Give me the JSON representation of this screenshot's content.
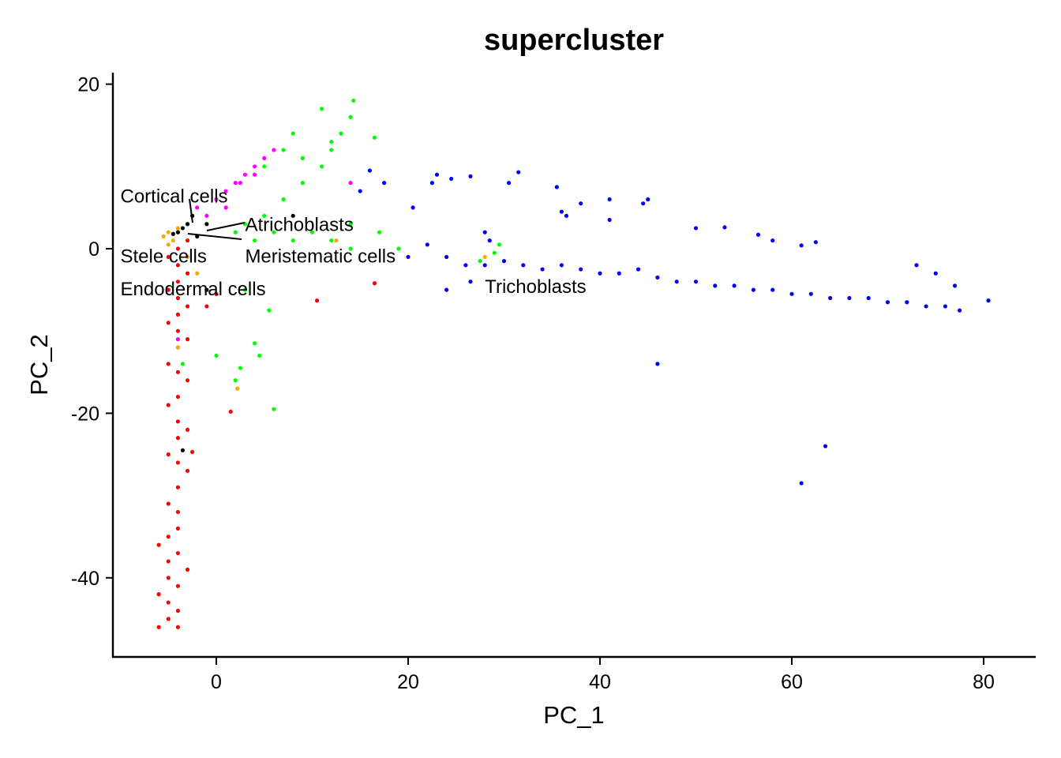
{
  "chart_data": {
    "type": "scatter",
    "title": "supercluster",
    "xlabel": "PC_1",
    "ylabel": "PC_2",
    "xlim": [
      -11,
      85
    ],
    "ylim": [
      -50,
      21
    ],
    "x_ticks": [
      0,
      20,
      40,
      60,
      80
    ],
    "y_ticks": [
      20,
      0,
      -20,
      -40
    ],
    "grid": false,
    "legend": "none (labels placed on plot)",
    "series": [
      {
        "name": "Endodermal cells",
        "color": "#FF0000",
        "note": "vertical band near PC_1 ≈ -5 to -3, PC_2 from ≈ 4 to -46",
        "points": [
          [
            -4,
            2
          ],
          [
            -3,
            1
          ],
          [
            -4,
            0
          ],
          [
            -5,
            -1
          ],
          [
            -4,
            -2
          ],
          [
            -3,
            -3
          ],
          [
            -4,
            -4
          ],
          [
            -5,
            -5
          ],
          [
            -4,
            -6
          ],
          [
            -3,
            -7
          ],
          [
            -4,
            -8
          ],
          [
            -5,
            -9
          ],
          [
            -4,
            -10
          ],
          [
            -3,
            -11
          ],
          [
            -4,
            -12
          ],
          [
            -5,
            -14
          ],
          [
            -4,
            -15
          ],
          [
            -3,
            -16
          ],
          [
            -4,
            -18
          ],
          [
            -5,
            -19
          ],
          [
            -4,
            -21
          ],
          [
            -3,
            -22
          ],
          [
            -4,
            -23
          ],
          [
            -5,
            -25
          ],
          [
            -4,
            -26
          ],
          [
            -3,
            -27
          ],
          [
            -4,
            -29
          ],
          [
            -5,
            -31
          ],
          [
            -4,
            -32
          ],
          [
            -4,
            -34
          ],
          [
            -5,
            -35
          ],
          [
            -6,
            -36
          ],
          [
            -4,
            -37
          ],
          [
            -5,
            -38
          ],
          [
            -3,
            -39
          ],
          [
            -5,
            -40
          ],
          [
            -4,
            -41
          ],
          [
            -6,
            -42
          ],
          [
            -5,
            -43
          ],
          [
            -4,
            -44
          ],
          [
            -5,
            -45
          ],
          [
            -6,
            -46
          ],
          [
            -4,
            -46
          ],
          [
            10.5,
            -6.3
          ],
          [
            16.5,
            -4.2
          ],
          [
            1.5,
            -19.8
          ],
          [
            -2.5,
            -24.7
          ],
          [
            0,
            -5.5
          ],
          [
            -1,
            -7
          ]
        ]
      },
      {
        "name": "Stele cells",
        "color": "#FFA500",
        "points": [
          [
            -5,
            2
          ],
          [
            -5.5,
            1.5
          ],
          [
            -4.5,
            1
          ],
          [
            -5,
            0.5
          ],
          [
            -4,
            2.5
          ],
          [
            -3,
            -1
          ],
          [
            -2,
            -3
          ],
          [
            -4,
            -12
          ],
          [
            2.2,
            -17
          ],
          [
            12.5,
            1
          ],
          [
            28,
            -1
          ]
        ]
      },
      {
        "name": "Meristematic cells",
        "color": "#00FF00",
        "points": [
          [
            2,
            2
          ],
          [
            4,
            1
          ],
          [
            6,
            2
          ],
          [
            8,
            1
          ],
          [
            10,
            2
          ],
          [
            12,
            1
          ],
          [
            14,
            0
          ],
          [
            3,
            3
          ],
          [
            5,
            4
          ],
          [
            7,
            6
          ],
          [
            9,
            8
          ],
          [
            11,
            10
          ],
          [
            12,
            12
          ],
          [
            13,
            14
          ],
          [
            14,
            16
          ],
          [
            14.3,
            18
          ],
          [
            11,
            17
          ],
          [
            8,
            14
          ],
          [
            7,
            12
          ],
          [
            5,
            10
          ],
          [
            9,
            11
          ],
          [
            12,
            13
          ],
          [
            16.5,
            13.5
          ],
          [
            17,
            2
          ],
          [
            14,
            3
          ],
          [
            19,
            0
          ],
          [
            3,
            -5
          ],
          [
            5.5,
            -7.5
          ],
          [
            0,
            -13
          ],
          [
            4,
            -11.5
          ],
          [
            4.5,
            -13
          ],
          [
            2.5,
            -14.5
          ],
          [
            2,
            -16
          ],
          [
            6,
            -19.5
          ],
          [
            -3.5,
            -14
          ],
          [
            27.5,
            -1.5
          ],
          [
            29,
            -0.5
          ],
          [
            29.5,
            0.5
          ]
        ]
      },
      {
        "name": "Cortical cells",
        "color": "#FF00FF",
        "points": [
          [
            -2,
            5
          ],
          [
            0,
            6
          ],
          [
            1,
            7
          ],
          [
            2,
            8
          ],
          [
            3,
            9
          ],
          [
            4,
            10
          ],
          [
            5,
            11
          ],
          [
            6,
            12
          ],
          [
            -1,
            4
          ],
          [
            1,
            5
          ],
          [
            2.5,
            8
          ],
          [
            4,
            9
          ],
          [
            14,
            8
          ],
          [
            -4,
            -11
          ]
        ]
      },
      {
        "name": "Trichoblasts",
        "color": "#0000FF",
        "points": [
          [
            16,
            9.5
          ],
          [
            15,
            7
          ],
          [
            17.5,
            8
          ],
          [
            20.5,
            5
          ],
          [
            22.5,
            8
          ],
          [
            23,
            9
          ],
          [
            24.5,
            8.5
          ],
          [
            26.5,
            8.8
          ],
          [
            28,
            2
          ],
          [
            28.5,
            1
          ],
          [
            30.5,
            8
          ],
          [
            31.5,
            9.3
          ],
          [
            35.5,
            7.5
          ],
          [
            36,
            4.5
          ],
          [
            36.5,
            4
          ],
          [
            38,
            5.5
          ],
          [
            41,
            6
          ],
          [
            41,
            3.5
          ],
          [
            44.5,
            5.5
          ],
          [
            45,
            6
          ],
          [
            50,
            2.5
          ],
          [
            53,
            2.6
          ],
          [
            56.5,
            1.7
          ],
          [
            58,
            1
          ],
          [
            61,
            0.4
          ],
          [
            62.5,
            0.8
          ],
          [
            20,
            -1
          ],
          [
            22,
            0.5
          ],
          [
            24,
            -1
          ],
          [
            26,
            -2
          ],
          [
            28,
            -2
          ],
          [
            30,
            -1.5
          ],
          [
            32,
            -2
          ],
          [
            34,
            -2.5
          ],
          [
            36,
            -2
          ],
          [
            38,
            -2.5
          ],
          [
            40,
            -3
          ],
          [
            42,
            -3
          ],
          [
            44,
            -2.5
          ],
          [
            46,
            -3.5
          ],
          [
            48,
            -4
          ],
          [
            50,
            -4
          ],
          [
            52,
            -4.5
          ],
          [
            54,
            -4.5
          ],
          [
            56,
            -5
          ],
          [
            58,
            -5
          ],
          [
            60,
            -5.5
          ],
          [
            62,
            -5.5
          ],
          [
            64,
            -6
          ],
          [
            66,
            -6
          ],
          [
            68,
            -6
          ],
          [
            70,
            -6.5
          ],
          [
            72,
            -6.5
          ],
          [
            74,
            -7
          ],
          [
            76,
            -7
          ],
          [
            77.5,
            -7.5
          ],
          [
            77,
            -4.5
          ],
          [
            75,
            -3
          ],
          [
            73,
            -2
          ],
          [
            80.5,
            -6.3
          ],
          [
            24,
            -5
          ],
          [
            26.5,
            -4
          ],
          [
            46,
            -14
          ],
          [
            61,
            -28.5
          ],
          [
            63.5,
            -24
          ]
        ]
      },
      {
        "name": "Atrichoblasts",
        "color": "#000000",
        "points": [
          [
            -4,
            2
          ],
          [
            -3.5,
            2.5
          ],
          [
            -3,
            3
          ],
          [
            -2.5,
            4
          ],
          [
            -2,
            1.5
          ],
          [
            -1,
            3
          ],
          [
            8,
            4
          ],
          [
            -1,
            -5
          ],
          [
            -3.5,
            -24.5
          ],
          [
            -4.5,
            1.8
          ]
        ]
      }
    ],
    "annotations": [
      {
        "text": "Cortical cells",
        "x": -10,
        "y": 6.5
      },
      {
        "text": "Atrichoblasts",
        "x": 3,
        "y": 3.0
      },
      {
        "text": "Stele cells",
        "x": -10,
        "y": -0.8
      },
      {
        "text": "Meristematic cells",
        "x": 3,
        "y": -0.8
      },
      {
        "text": "Endodermal cells",
        "x": -10,
        "y": -4.8
      },
      {
        "text": "Trichoblasts",
        "x": 28,
        "y": -4.5
      }
    ]
  }
}
